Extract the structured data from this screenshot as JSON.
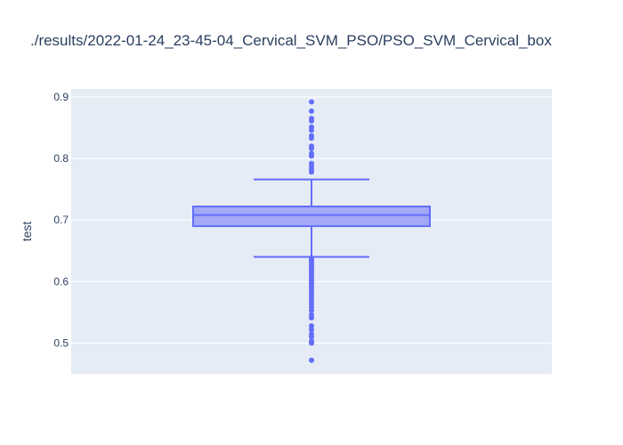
{
  "chart_data": {
    "type": "box",
    "title": "./results/2022-01-24_23-45-04_Cervical_SVM_PSO/PSO_SVM_Cervical_box",
    "xlabel": "",
    "ylabel": "test",
    "ylim": [
      0.45,
      0.913
    ],
    "y_ticks": [
      0.5,
      0.6,
      0.7,
      0.8,
      0.9
    ],
    "y_tick_labels": [
      "0.5",
      "0.6",
      "0.7",
      "0.8",
      "0.9"
    ],
    "grid": true,
    "series": [
      {
        "lower_fence": 0.64,
        "q1": 0.69,
        "median": 0.708,
        "q3": 0.722,
        "upper_fence": 0.766,
        "outliers": [
          0.892,
          0.877,
          0.865,
          0.861,
          0.851,
          0.846,
          0.837,
          0.833,
          0.82,
          0.816,
          0.808,
          0.804,
          0.792,
          0.787,
          0.782,
          0.778,
          0.638,
          0.635,
          0.632,
          0.628,
          0.624,
          0.621,
          0.618,
          0.614,
          0.61,
          0.606,
          0.602,
          0.598,
          0.594,
          0.59,
          0.585,
          0.58,
          0.575,
          0.569,
          0.564,
          0.558,
          0.553,
          0.546,
          0.541,
          0.528,
          0.522,
          0.515,
          0.51,
          0.503,
          0.5,
          0.472
        ]
      }
    ],
    "colors": {
      "box_fill": "#a3a8f7",
      "box_line": "#636efa",
      "plot_bg": "#e5ecf6",
      "grid": "#ffffff",
      "text": "#2a3f5f"
    }
  }
}
